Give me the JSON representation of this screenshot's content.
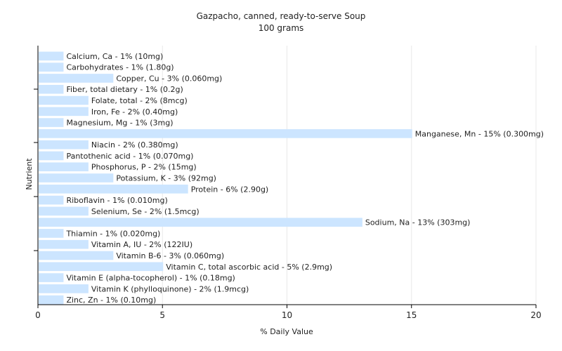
{
  "chart_data": {
    "type": "bar",
    "orientation": "horizontal",
    "title": "Gazpacho, canned, ready-to-serve Soup",
    "subtitle": "100 grams",
    "xlabel": "% Daily Value",
    "ylabel": "Nutrient",
    "xlim": [
      0,
      20
    ],
    "xticks": [
      0,
      5,
      10,
      15,
      20
    ],
    "grid": true,
    "bar_color": "#cce5ff",
    "categories": [
      "Calcium, Ca",
      "Carbohydrates",
      "Copper, Cu",
      "Fiber, total dietary",
      "Folate, total",
      "Iron, Fe",
      "Magnesium, Mg",
      "Manganese, Mn",
      "Niacin",
      "Pantothenic acid",
      "Phosphorus, P",
      "Potassium, K",
      "Protein",
      "Riboflavin",
      "Selenium, Se",
      "Sodium, Na",
      "Thiamin",
      "Vitamin A, IU",
      "Vitamin B-6",
      "Vitamin C, total ascorbic acid",
      "Vitamin E (alpha-tocopherol)",
      "Vitamin K (phylloquinone)",
      "Zinc, Zn"
    ],
    "values": [
      1,
      1,
      3,
      1,
      2,
      2,
      1,
      15,
      2,
      1,
      2,
      3,
      6,
      1,
      2,
      13,
      1,
      2,
      3,
      5,
      1,
      2,
      1
    ],
    "labels": [
      "Calcium, Ca - 1% (10mg)",
      "Carbohydrates - 1% (1.80g)",
      "Copper, Cu - 3% (0.060mg)",
      "Fiber, total dietary - 1% (0.2g)",
      "Folate, total - 2% (8mcg)",
      "Iron, Fe - 2% (0.40mg)",
      "Magnesium, Mg - 1% (3mg)",
      "Manganese, Mn - 15% (0.300mg)",
      "Niacin - 2% (0.380mg)",
      "Pantothenic acid - 1% (0.070mg)",
      "Phosphorus, P - 2% (15mg)",
      "Potassium, K - 3% (92mg)",
      "Protein - 6% (2.90g)",
      "Riboflavin - 1% (0.010mg)",
      "Selenium, Se - 2% (1.5mcg)",
      "Sodium, Na - 13% (303mg)",
      "Thiamin - 1% (0.020mg)",
      "Vitamin A, IU - 2% (122IU)",
      "Vitamin B-6 - 3% (0.060mg)",
      "Vitamin C, total ascorbic acid - 5% (2.9mg)",
      "Vitamin E (alpha-tocopherol) - 1% (0.18mg)",
      "Vitamin K (phylloquinone) - 2% (1.9mcg)",
      "Zinc, Zn - 1% (0.10mg)"
    ]
  }
}
